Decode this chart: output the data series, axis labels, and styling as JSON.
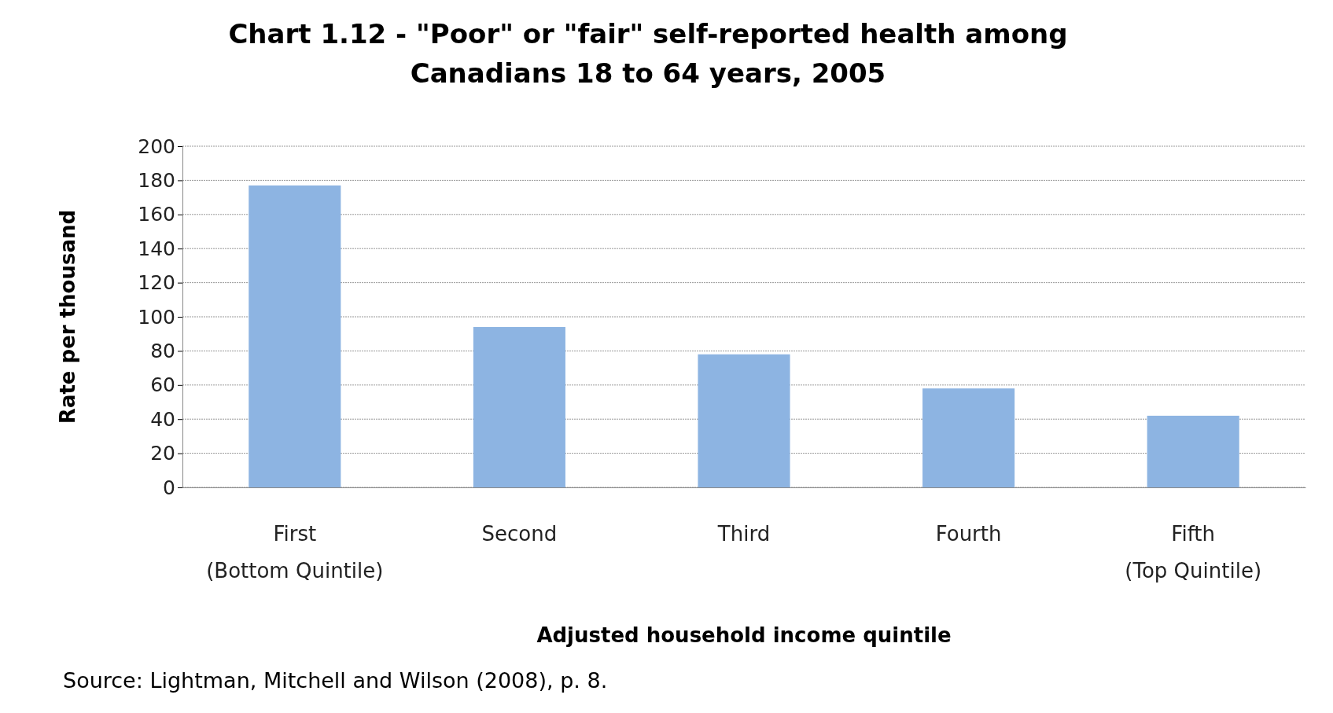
{
  "chart_data": {
    "type": "bar",
    "title": "Chart 1.12 - \"Poor\" or \"fair\" self-reported health among\nCanadians 18 to 64 years, 2005",
    "categories": [
      "First\n(Bottom Quintile)",
      "Second",
      "Third",
      "Fourth",
      "Fifth\n(Top Quintile)"
    ],
    "values": [
      177,
      94,
      78,
      58,
      42
    ],
    "color": "#8db4e2",
    "ylim": [
      0,
      200
    ],
    "yticks": [
      0,
      20,
      40,
      60,
      80,
      100,
      120,
      140,
      160,
      180,
      200
    ],
    "grid": "y",
    "xlabel": "Adjusted household income quintile",
    "ylabel": "Rate per thousand",
    "annotations": [
      "Source: Lightman, Mitchell and Wilson (2008), p. 8."
    ]
  }
}
